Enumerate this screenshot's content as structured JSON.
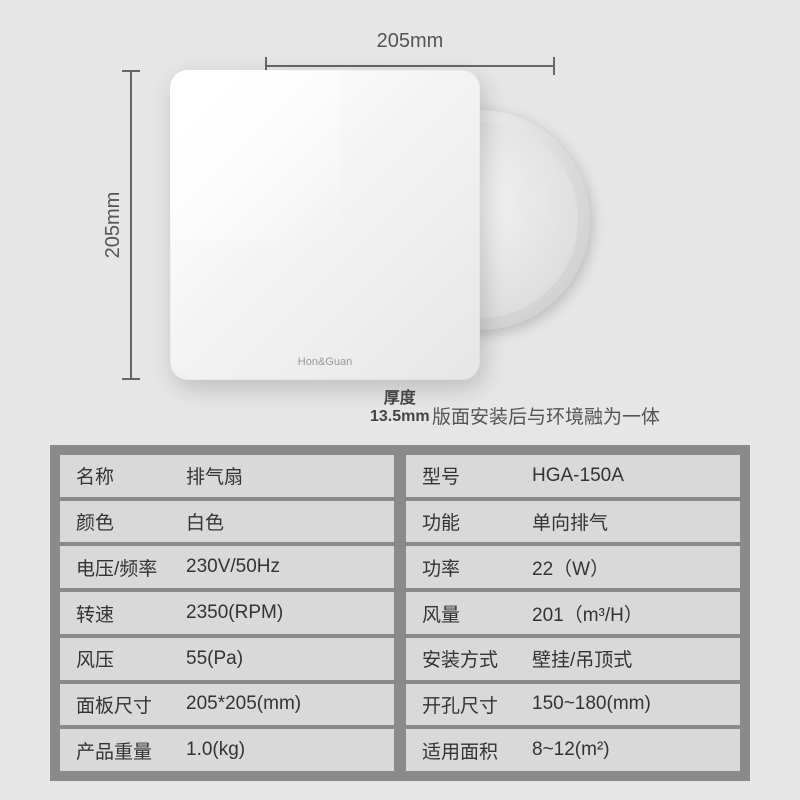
{
  "dimensions": {
    "width_label": "205mm",
    "height_label": "205mm",
    "thickness_key": "厚度",
    "thickness_value": "13.5mm"
  },
  "brand": "Hon&Guan",
  "tagline": "版面安装后与环境融为一体",
  "specs_left": [
    {
      "k": "名称",
      "v": "排气扇"
    },
    {
      "k": "颜色",
      "v": "白色"
    },
    {
      "k": "电压/频率",
      "v": "230V/50Hz"
    },
    {
      "k": "转速",
      "v": "2350(RPM)"
    },
    {
      "k": "风压",
      "v": "55(Pa)"
    },
    {
      "k": "面板尺寸",
      "v": "205*205(mm)"
    },
    {
      "k": "产品重量",
      "v": "1.0(kg)"
    }
  ],
  "specs_right": [
    {
      "k": "型号",
      "v": "HGA-150A"
    },
    {
      "k": "功能",
      "v": "单向排气"
    },
    {
      "k": "功率",
      "v": "22（W）"
    },
    {
      "k": "风量",
      "v": "201（m³/H）"
    },
    {
      "k": "安装方式",
      "v": "壁挂/吊顶式"
    },
    {
      "k": "开孔尺寸",
      "v": "150~180(mm)"
    },
    {
      "k": "适用面积",
      "v": "8~12(m²)"
    }
  ],
  "colors": {
    "page_bg": "#e6e6e6",
    "spec_bg": "#8a8a8a",
    "cell_bg": "#d9d9d9",
    "text": "#333333",
    "ruler": "#666666"
  }
}
